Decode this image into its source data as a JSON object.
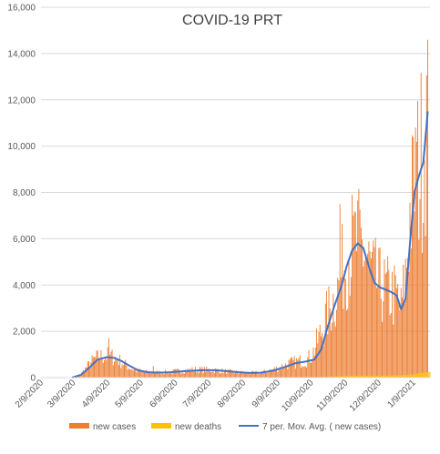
{
  "chart_data": {
    "type": "bar",
    "title": "COVID-19 PRT",
    "xlabel": "",
    "ylabel": "",
    "ylim": [
      0,
      16000
    ],
    "y_ticks": [
      0,
      2000,
      4000,
      6000,
      8000,
      10000,
      12000,
      14000,
      16000
    ],
    "y_tick_labels": [
      "0",
      "2,000",
      "4,000",
      "6,000",
      "8,000",
      "10,000",
      "12,000",
      "14,000",
      "16,000"
    ],
    "x_range": [
      "2020-02-09",
      "2021-01-24"
    ],
    "x_tick_labels": [
      "2/9/2020",
      "3/9/2020",
      "4/9/2020",
      "5/9/2020",
      "6/9/2020",
      "7/9/2020",
      "8/9/2020",
      "9/9/2020",
      "10/9/2020",
      "11/9/2020",
      "12/9/2020",
      "1/9/2021"
    ],
    "grid": true,
    "legend_position": "bottom",
    "colors": {
      "new_cases": "#ed7d31",
      "new_deaths": "#ffc000",
      "moving_avg": "#4472c4"
    },
    "series": [
      {
        "name": "new cases",
        "kind": "bar",
        "approx_daily_values_keypoints": [
          [
            "2020-03-02",
            0
          ],
          [
            "2020-03-10",
            20
          ],
          [
            "2020-03-16",
            150
          ],
          [
            "2020-03-22",
            500
          ],
          [
            "2020-03-28",
            800
          ],
          [
            "2020-04-02",
            900
          ],
          [
            "2020-04-10",
            950
          ],
          [
            "2020-04-16",
            850
          ],
          [
            "2020-04-22",
            650
          ],
          [
            "2020-04-28",
            450
          ],
          [
            "2020-05-04",
            320
          ],
          [
            "2020-05-12",
            250
          ],
          [
            "2020-05-20",
            220
          ],
          [
            "2020-05-28",
            230
          ],
          [
            "2020-06-05",
            250
          ],
          [
            "2020-06-15",
            300
          ],
          [
            "2020-06-25",
            340
          ],
          [
            "2020-07-05",
            340
          ],
          [
            "2020-07-15",
            320
          ],
          [
            "2020-07-25",
            260
          ],
          [
            "2020-08-05",
            220
          ],
          [
            "2020-08-15",
            190
          ],
          [
            "2020-08-25",
            210
          ],
          [
            "2020-09-01",
            300
          ],
          [
            "2020-09-10",
            420
          ],
          [
            "2020-09-20",
            620
          ],
          [
            "2020-09-30",
            720
          ],
          [
            "2020-10-06",
            800
          ],
          [
            "2020-10-10",
            1000
          ],
          [
            "2020-10-16",
            1700
          ],
          [
            "2020-10-22",
            2500
          ],
          [
            "2020-10-28",
            3200
          ],
          [
            "2020-11-02",
            3800
          ],
          [
            "2020-11-08",
            5000
          ],
          [
            "2020-11-14",
            5700
          ],
          [
            "2020-11-20",
            5800
          ],
          [
            "2020-11-26",
            5500
          ],
          [
            "2020-12-02",
            4600
          ],
          [
            "2020-12-08",
            4000
          ],
          [
            "2020-12-14",
            3800
          ],
          [
            "2020-12-20",
            3650
          ],
          [
            "2020-12-26",
            3400
          ],
          [
            "2020-12-29",
            2900
          ],
          [
            "2021-01-02",
            4400
          ],
          [
            "2021-01-06",
            7000
          ],
          [
            "2021-01-10",
            8400
          ],
          [
            "2021-01-14",
            9100
          ],
          [
            "2021-01-18",
            10000
          ],
          [
            "2021-01-22",
            11500
          ]
        ],
        "notable_peaks": [
          [
            "2020-04-10",
            1700
          ],
          [
            "2020-05-20",
            500
          ],
          [
            "2020-11-04",
            7500
          ],
          [
            "2020-11-16",
            7000
          ],
          [
            "2021-01-11",
            10800
          ],
          [
            "2021-01-22",
            14600
          ]
        ]
      },
      {
        "name": "new deaths",
        "kind": "bar",
        "approx_daily_values_keypoints": [
          [
            "2020-03-15",
            0
          ],
          [
            "2020-04-05",
            30
          ],
          [
            "2020-04-20",
            25
          ],
          [
            "2020-06-01",
            5
          ],
          [
            "2020-09-01",
            5
          ],
          [
            "2020-10-15",
            20
          ],
          [
            "2020-11-15",
            80
          ],
          [
            "2020-12-15",
            80
          ],
          [
            "2021-01-05",
            120
          ],
          [
            "2021-01-24",
            250
          ]
        ]
      },
      {
        "name": "7 per. Mov. Avg. ( new cases)",
        "kind": "line",
        "x": [
          "2020-03-08",
          "2020-03-16",
          "2020-03-24",
          "2020-03-31",
          "2020-04-08",
          "2020-04-15",
          "2020-04-22",
          "2020-04-29",
          "2020-05-06",
          "2020-05-15",
          "2020-05-25",
          "2020-06-05",
          "2020-06-15",
          "2020-06-25",
          "2020-07-05",
          "2020-07-15",
          "2020-07-25",
          "2020-08-05",
          "2020-08-15",
          "2020-08-25",
          "2020-09-05",
          "2020-09-15",
          "2020-09-25",
          "2020-10-05",
          "2020-10-12",
          "2020-10-18",
          "2020-10-24",
          "2020-10-30",
          "2020-11-05",
          "2020-11-10",
          "2020-11-15",
          "2020-11-20",
          "2020-11-25",
          "2020-11-30",
          "2020-12-05",
          "2020-12-10",
          "2020-12-15",
          "2020-12-20",
          "2020-12-25",
          "2020-12-29",
          "2021-01-02",
          "2021-01-06",
          "2021-01-10",
          "2021-01-14",
          "2021-01-18",
          "2021-01-22"
        ],
        "y": [
          0,
          120,
          450,
          780,
          880,
          850,
          700,
          500,
          320,
          230,
          210,
          230,
          270,
          300,
          320,
          320,
          280,
          230,
          200,
          210,
          300,
          450,
          620,
          700,
          780,
          1200,
          2200,
          3100,
          3900,
          4800,
          5500,
          5800,
          5600,
          4800,
          4100,
          3900,
          3800,
          3700,
          3550,
          2950,
          3400,
          5800,
          8000,
          8700,
          9300,
          11500
        ]
      }
    ]
  }
}
